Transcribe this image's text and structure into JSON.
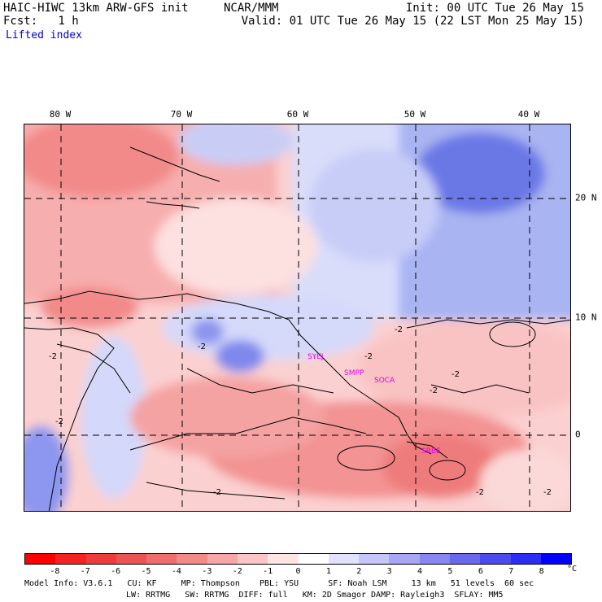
{
  "header": {
    "model": "HAIC-HIWC 13km ARW-GFS init",
    "center": "NCAR/MMM",
    "init": "Init: 00 UTC Tue 26 May 15",
    "fcst": "Fcst:   1 h",
    "valid": "Valid: 01 UTC Tue 26 May 15 (22 LST Mon 25 May 15)",
    "field": "Lifted index"
  },
  "map": {
    "lon_labels": [
      "80 W",
      "70 W",
      "60 W",
      "50 W",
      "40 W"
    ],
    "lat_labels": [
      "20 N",
      "10 N",
      "0"
    ],
    "stations": [
      "SYEJ",
      "SMPP",
      "SOCA",
      "SBBE"
    ],
    "contour_labels": [
      "-2",
      "-2",
      "-2",
      "-2",
      "-2",
      "-2",
      "-2",
      "-2",
      "-2",
      "-2"
    ]
  },
  "colorbar": {
    "labels": [
      "-8",
      "-7",
      "-6",
      "-5",
      "-4",
      "-3",
      "-2",
      "-1",
      "0",
      "1",
      "2",
      "3",
      "4",
      "5",
      "6",
      "7",
      "8"
    ],
    "unit": "°C",
    "colors": [
      "#ff0000",
      "#f42222",
      "#ee3c3c",
      "#ec5454",
      "#ef6d6d",
      "#f28a8a",
      "#f6a6a6",
      "#fac5c5",
      "#ffe4e4",
      "#ffffff",
      "#e2e2ff",
      "#c6c6fb",
      "#a7a7f6",
      "#8787f2",
      "#6969ee",
      "#4b4bee",
      "#2c2cf4",
      "#0000ff"
    ]
  },
  "info": {
    "line1": "Model Info: V3.6.1   CU: KF     MP: Thompson    PBL: YSU      SF: Noah LSM     13 km   51 levels  60 sec",
    "line2": "LW: RRTMG   SW: RRTMG  DIFF: full   KM: 2D Smagor DAMP: Rayleigh3  SFLAY: MM5"
  }
}
